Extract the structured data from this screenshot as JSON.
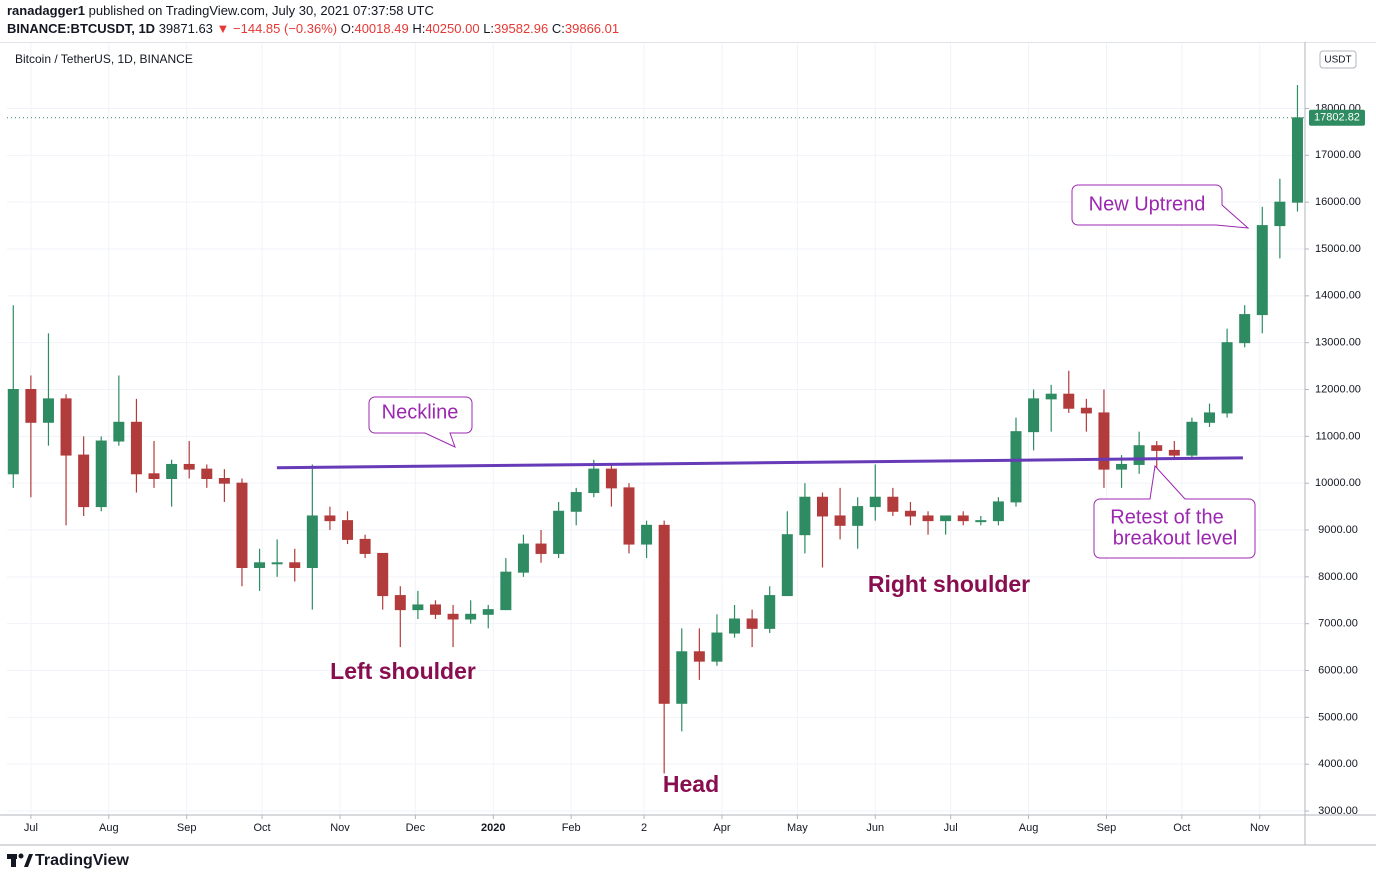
{
  "chart_data": {
    "type": "candlestick",
    "header": {
      "publisher": "ranadagger1",
      "published": "published on TradingView.com, July 30, 2021 07:37:58 UTC",
      "symbol": "BINANCE:BTCUSDT, 1D",
      "last": "39871.63",
      "change": "▼ −144.85 (−0.36%)",
      "ohlc": [
        {
          "label": "O:",
          "value": "40018.49"
        },
        {
          "label": "H:",
          "value": "40250.00"
        },
        {
          "label": "L:",
          "value": "39582.96"
        },
        {
          "label": "C:",
          "value": "39866.01"
        }
      ]
    },
    "title": "Bitcoin / TetherUS, 1D, BINANCE",
    "currency": "USDT",
    "footer": "TradingView",
    "up_color": "#2e8b62",
    "down_color": "#b23b3b",
    "grid": true,
    "x": [
      -7,
      0,
      7,
      14,
      21,
      28,
      35,
      42,
      49,
      56,
      63,
      70,
      77,
      84,
      91,
      98,
      105,
      112,
      119,
      126,
      133,
      140,
      147,
      154,
      161,
      168,
      175,
      182,
      189,
      196,
      203,
      210,
      217,
      224,
      231,
      238,
      245,
      252,
      259,
      266,
      273,
      280,
      287,
      294,
      301,
      308,
      315,
      322,
      329,
      336,
      343,
      350,
      357,
      364,
      371,
      378,
      385,
      392,
      399,
      406,
      413,
      420,
      427,
      434,
      441,
      448,
      455,
      462,
      469,
      476,
      483,
      490,
      497,
      504
    ],
    "open": [
      10200,
      12000,
      11300,
      11800,
      10600,
      9500,
      10900,
      11300,
      10200,
      10100,
      10400,
      10300,
      10100,
      10000,
      8200,
      8300,
      8300,
      8200,
      9300,
      9200,
      8800,
      8500,
      7600,
      7300,
      7400,
      7200,
      7100,
      7200,
      7300,
      8100,
      8700,
      8500,
      9400,
      9800,
      10300,
      9900,
      8700,
      9100,
      5300,
      6400,
      6200,
      6800,
      7100,
      6900,
      7600,
      8900,
      9700,
      9300,
      9100,
      9500,
      9700,
      9400,
      9300,
      9200,
      9300,
      9200,
      9200,
      9600,
      11100,
      11800,
      11900,
      11600,
      11500,
      10300,
      10400,
      10800,
      10700,
      10600,
      11300,
      11500,
      13000,
      13600,
      15500,
      16000
    ],
    "high": [
      13800,
      12300,
      13200,
      11900,
      11000,
      11000,
      12300,
      11800,
      10900,
      10500,
      10900,
      10400,
      10300,
      10100,
      8600,
      8800,
      8600,
      10400,
      9500,
      9400,
      8900,
      8500,
      7800,
      7700,
      7500,
      7400,
      7500,
      7400,
      8400,
      8900,
      9000,
      9600,
      9900,
      10500,
      10400,
      10000,
      9200,
      9200,
      6900,
      6900,
      7200,
      7400,
      7300,
      7800,
      9400,
      10000,
      9800,
      9900,
      9700,
      10400,
      9900,
      9600,
      9400,
      9300,
      9400,
      9300,
      9700,
      11400,
      12000,
      12100,
      12400,
      11800,
      12000,
      10600,
      11100,
      10900,
      10900,
      11400,
      11700,
      13300,
      13800,
      15900,
      16500,
      18500
    ],
    "low": [
      9900,
      9700,
      10800,
      9100,
      9300,
      9400,
      10800,
      9800,
      9900,
      9500,
      10100,
      9900,
      9600,
      7800,
      7700,
      8000,
      7900,
      7300,
      9000,
      8700,
      8400,
      7300,
      6500,
      7100,
      7100,
      6500,
      7000,
      6900,
      7300,
      8000,
      8300,
      8400,
      9100,
      9700,
      9500,
      8500,
      8400,
      3800,
      4700,
      5800,
      6100,
      6700,
      6500,
      6800,
      7600,
      8500,
      8200,
      8800,
      8600,
      9200,
      9300,
      9100,
      8900,
      8900,
      9100,
      9100,
      9100,
      9500,
      10700,
      11100,
      11500,
      11100,
      9900,
      9900,
      10200,
      10100,
      10500,
      10500,
      11200,
      11400,
      12900,
      13200,
      14800,
      15800
    ],
    "close": [
      12000,
      11300,
      11800,
      10600,
      9500,
      10900,
      11300,
      10200,
      10100,
      10400,
      10300,
      10100,
      10000,
      8200,
      8300,
      8300,
      8200,
      9300,
      9200,
      8800,
      8500,
      7600,
      7300,
      7400,
      7200,
      7100,
      7200,
      7300,
      8100,
      8700,
      8500,
      9400,
      9800,
      10300,
      9900,
      8700,
      9100,
      5300,
      6400,
      6200,
      6800,
      7100,
      6900,
      7600,
      8900,
      9700,
      9300,
      9100,
      9500,
      9700,
      9400,
      9300,
      9200,
      9300,
      9200,
      9200,
      9600,
      11100,
      11800,
      11900,
      11600,
      11500,
      10300,
      10400,
      10800,
      10700,
      10600,
      11300,
      11500,
      13000,
      13600,
      15500,
      16000,
      17800
    ],
    "last_price": 17802.82,
    "xlim": [
      -9.5,
      507
    ],
    "xticks": [
      {
        "value": 0,
        "label": "Jul"
      },
      {
        "value": 31,
        "label": "Aug"
      },
      {
        "value": 62,
        "label": "Sep"
      },
      {
        "value": 92,
        "label": "Oct"
      },
      {
        "value": 123,
        "label": "Nov"
      },
      {
        "value": 153,
        "label": "Dec"
      },
      {
        "value": 184,
        "label": "2020"
      },
      {
        "value": 215,
        "label": "Feb"
      },
      {
        "value": 244,
        "label": "2"
      },
      {
        "value": 275,
        "label": "Apr"
      },
      {
        "value": 305,
        "label": "May"
      },
      {
        "value": 336,
        "label": "Jun"
      },
      {
        "value": 366,
        "label": "Jul"
      },
      {
        "value": 397,
        "label": "Aug"
      },
      {
        "value": 428,
        "label": "Sep"
      },
      {
        "value": 458,
        "label": "Oct"
      },
      {
        "value": 489,
        "label": "Nov"
      }
    ],
    "ylim": [
      2915,
      19420
    ],
    "yticks": [
      {
        "value": 3000,
        "label": "3000.00"
      },
      {
        "value": 4000,
        "label": "4000.00"
      },
      {
        "value": 5000,
        "label": "5000.00"
      },
      {
        "value": 6000,
        "label": "6000.00"
      },
      {
        "value": 7000,
        "label": "7000.00"
      },
      {
        "value": 8000,
        "label": "8000.00"
      },
      {
        "value": 9000,
        "label": "9000.00"
      },
      {
        "value": 10000,
        "label": "10000.00"
      },
      {
        "value": 11000,
        "label": "11000.00"
      },
      {
        "value": 12000,
        "label": "12000.00"
      },
      {
        "value": 13000,
        "label": "13000.00"
      },
      {
        "value": 14000,
        "label": "14000.00"
      },
      {
        "value": 15000,
        "label": "15000.00"
      },
      {
        "value": 16000,
        "label": "16000.00"
      },
      {
        "value": 17000,
        "label": "17000.00"
      },
      {
        "value": 18000,
        "label": "18000.00"
      }
    ],
    "neckline": {
      "color": "#673ab7",
      "x": [
        97.9,
        482.3
      ],
      "y": [
        10330,
        10540
      ]
    },
    "annotations": {
      "neckline": "Neckline",
      "left_shoulder": "Left shoulder",
      "head": "Head",
      "right_shoulder": "Right shoulder",
      "new_uptrend": "New Uptrend",
      "retest": [
        "Retest of the",
        "breakout level"
      ]
    }
  }
}
